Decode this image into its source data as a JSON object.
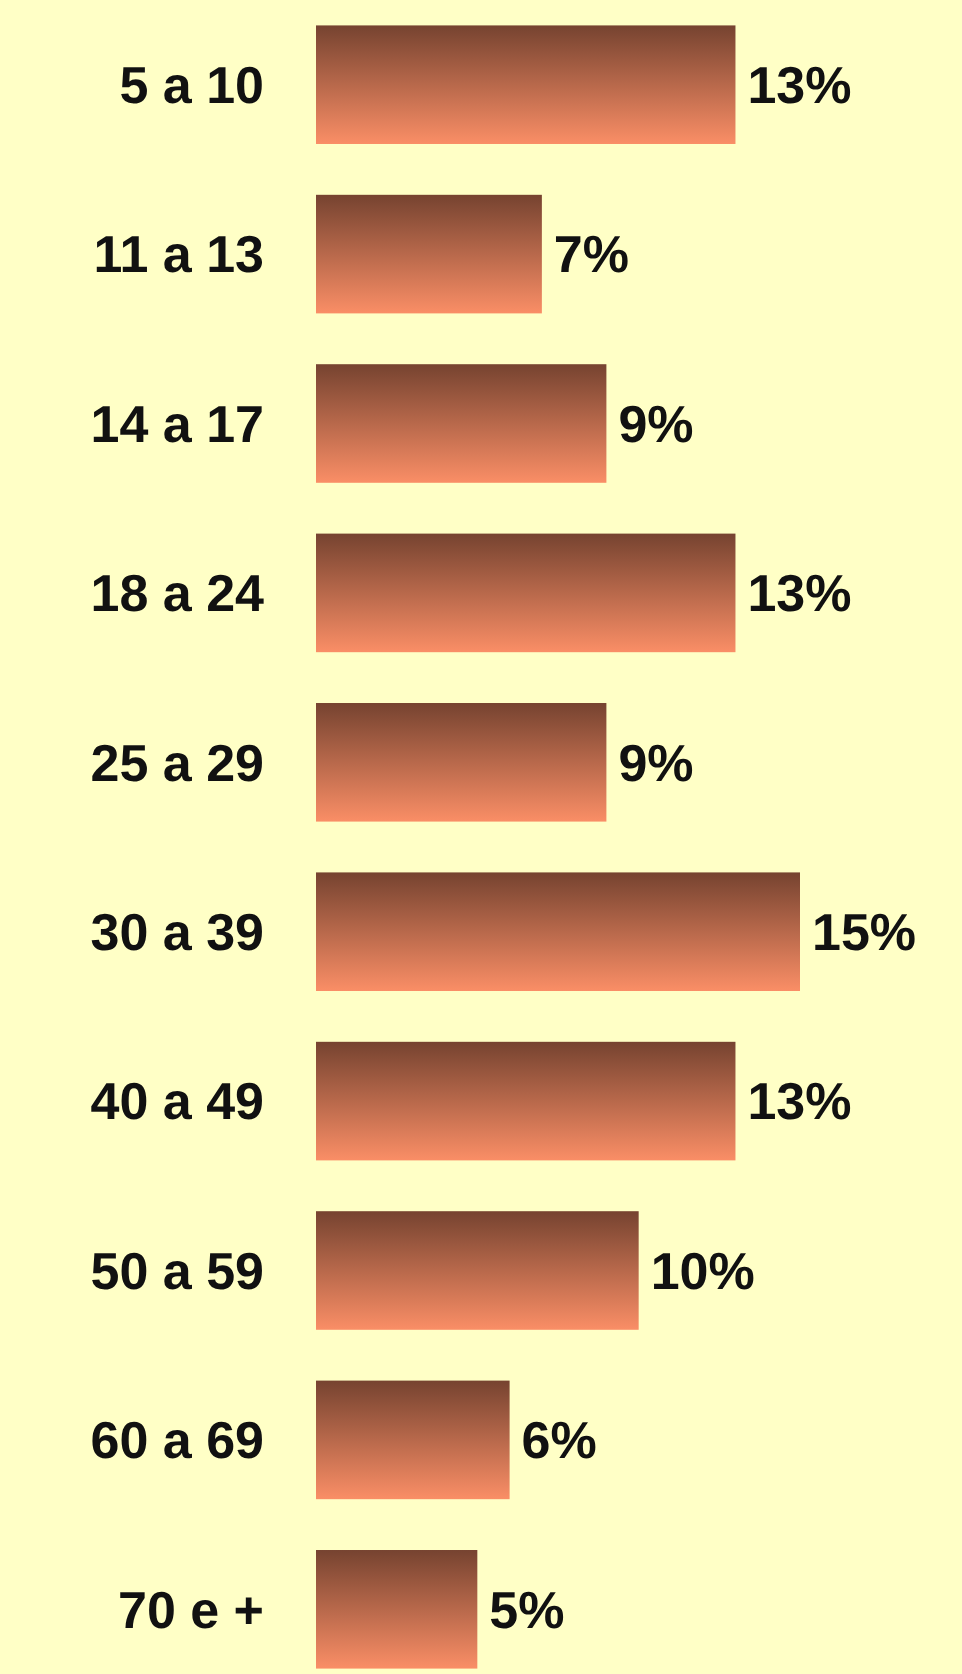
{
  "chart_data": {
    "type": "bar",
    "orientation": "horizontal",
    "categories": [
      "5 a 10",
      "11 a 13",
      "14 a 17",
      "18 a 24",
      "25 a 29",
      "30 a 39",
      "40 a 49",
      "50 a 59",
      "60 a 69",
      "70 e +"
    ],
    "values": [
      13,
      7,
      9,
      13,
      9,
      15,
      13,
      10,
      6,
      5
    ],
    "value_labels": [
      "13%",
      "7%",
      "9%",
      "13%",
      "9%",
      "15%",
      "13%",
      "10%",
      "6%",
      "5%"
    ],
    "color": "#b5674a",
    "xlim": [
      0,
      15
    ],
    "tick_labels": "y"
  }
}
